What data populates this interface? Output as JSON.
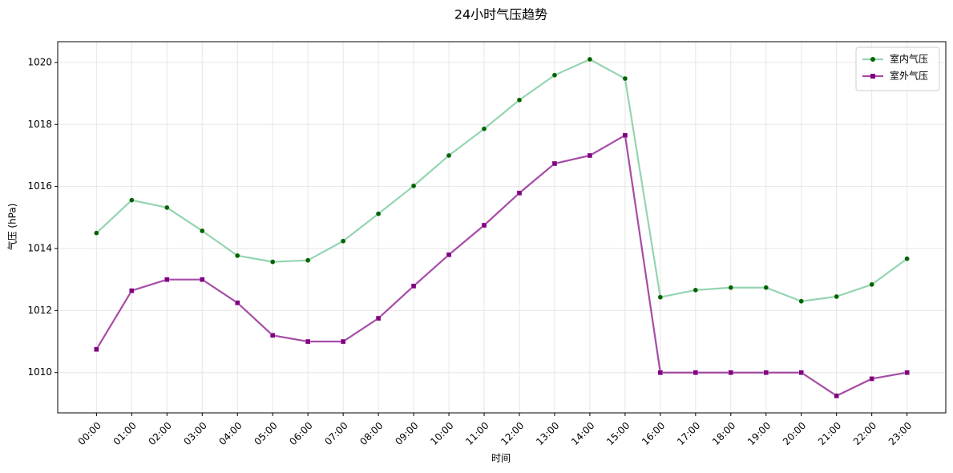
{
  "chart_data": {
    "type": "line",
    "title": "24小时气压趋势",
    "xlabel": "时间",
    "ylabel": "气压 (hPa)",
    "categories": [
      "00:00",
      "01:00",
      "02:00",
      "03:00",
      "04:00",
      "05:00",
      "06:00",
      "07:00",
      "08:00",
      "09:00",
      "10:00",
      "11:00",
      "12:00",
      "13:00",
      "14:00",
      "15:00",
      "16:00",
      "17:00",
      "18:00",
      "19:00",
      "20:00",
      "21:00",
      "22:00",
      "23:00"
    ],
    "series": [
      {
        "name": "室内气压",
        "color": "#3cb371",
        "marker_color": "#006400",
        "marker": "circle",
        "values": [
          1014.5,
          1015.56,
          1015.32,
          1014.57,
          1013.77,
          1013.57,
          1013.62,
          1014.24,
          1015.12,
          1016.02,
          1017.0,
          1017.86,
          1018.79,
          1019.59,
          1020.1,
          1019.48,
          1012.43,
          1012.66,
          1012.74,
          1012.74,
          1012.3,
          1012.45,
          1012.84,
          1013.67
        ]
      },
      {
        "name": "室外气压",
        "color": "#800080",
        "marker_color": "#800080",
        "marker": "square",
        "values": [
          1010.75,
          1012.64,
          1013.0,
          1013.0,
          1012.25,
          1011.2,
          1011.0,
          1011.0,
          1011.75,
          1012.79,
          1013.8,
          1014.75,
          1015.79,
          1016.74,
          1017.0,
          1017.65,
          1010.0,
          1010.0,
          1010.0,
          1010.0,
          1010.0,
          1009.25,
          1009.8,
          1010.0
        ]
      }
    ],
    "ylim": [
      1008.7,
      1020.67
    ],
    "yticks": [
      1010,
      1012,
      1014,
      1016,
      1018,
      1020
    ],
    "grid": true,
    "legend": "upper right"
  }
}
